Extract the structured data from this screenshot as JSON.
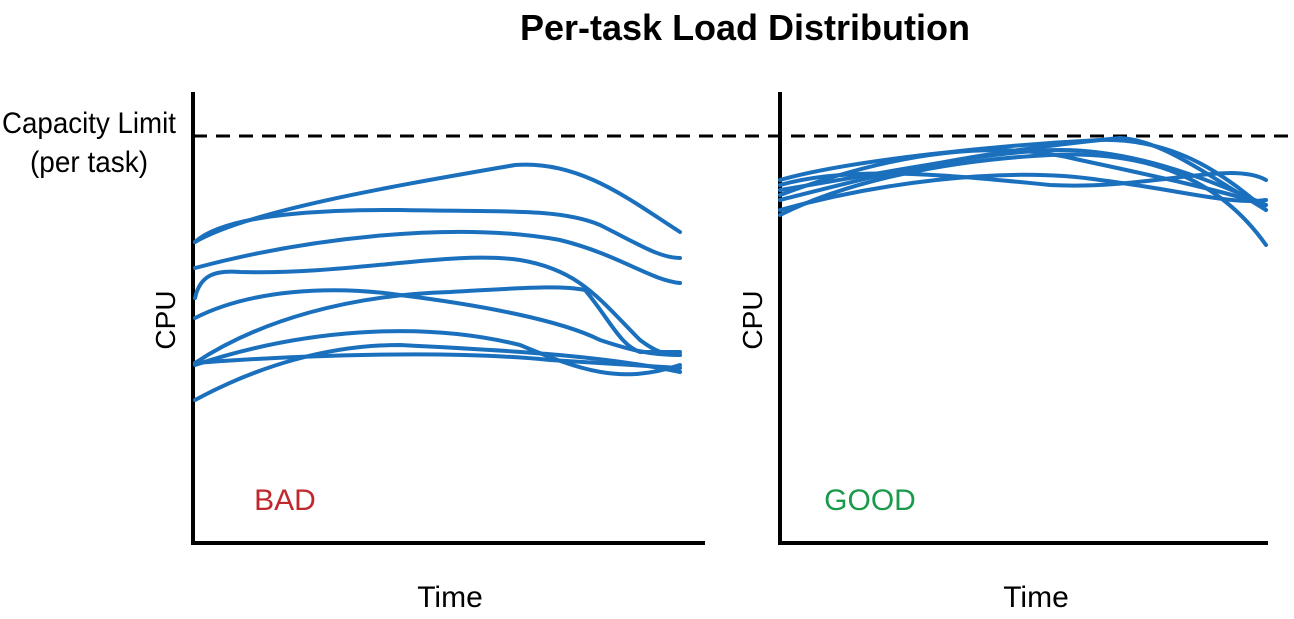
{
  "header": {
    "title": "Per-task Load Distribution"
  },
  "capacity_label": [
    "Capacity Limit",
    "(per task)"
  ],
  "panels": [
    {
      "y_label": "CPU",
      "x_label": "Time",
      "verdict": "BAD"
    },
    {
      "y_label": "CPU",
      "x_label": "Time",
      "verdict": "GOOD"
    }
  ]
}
